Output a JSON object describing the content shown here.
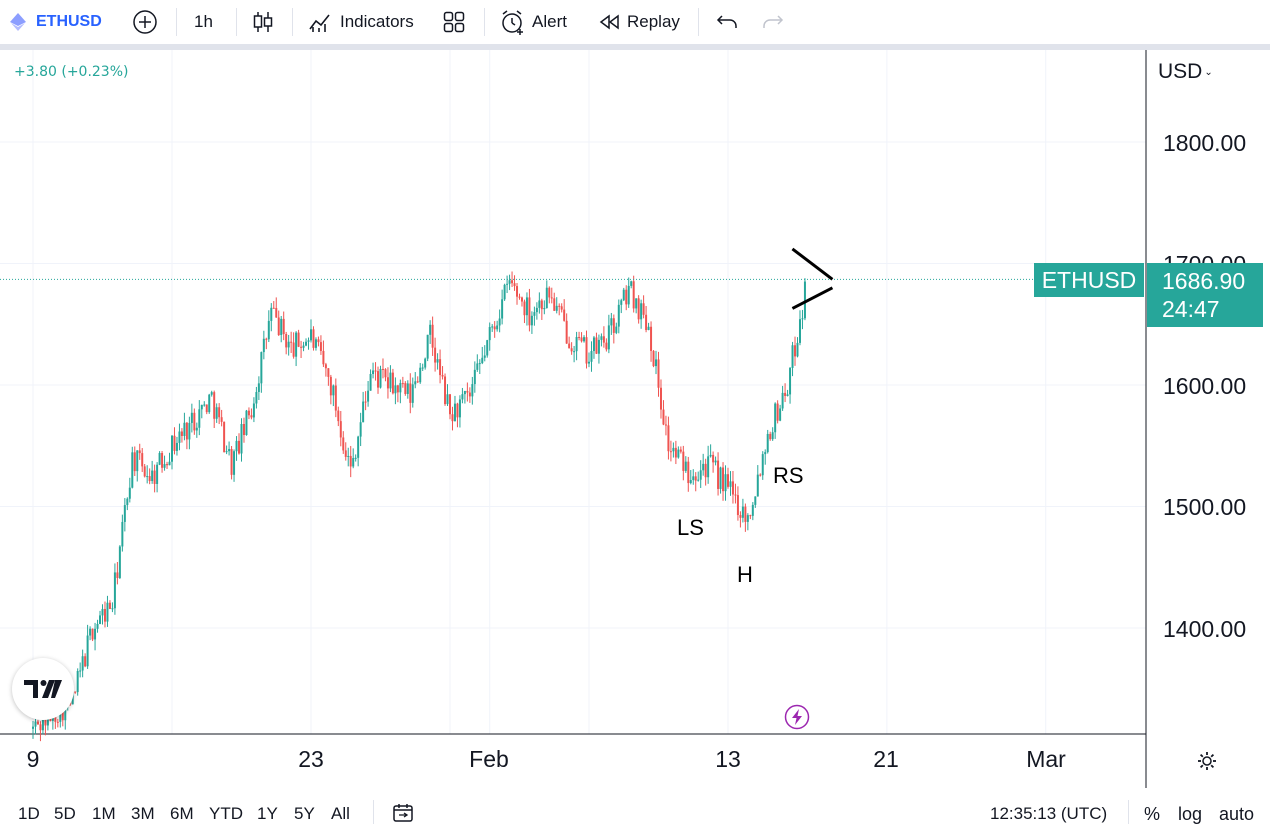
{
  "toolbar": {
    "symbol": "ETHUSD",
    "interval": "1h",
    "indicators_label": "Indicators",
    "alert_label": "Alert",
    "replay_label": "Replay"
  },
  "chart": {
    "change_text": "+3.80 (+0.23%)",
    "currency": "USD",
    "price_scale": [
      "1800.00",
      "1700.00",
      "1600.00",
      "1500.00",
      "1400.00"
    ],
    "time_scale": [
      "9",
      "23",
      "Feb",
      "13",
      "21",
      "Mar"
    ],
    "symbol_tag": "ETHUSD",
    "last_price": "1686.90",
    "countdown": "24:47",
    "annotations": {
      "left_shoulder": "LS",
      "head": "H",
      "right_shoulder": "RS"
    },
    "colors": {
      "up": "#26a69a",
      "down": "#ef5350",
      "accent": "#26a69a",
      "symbol_blue": "#2962ff"
    }
  },
  "chart_data": {
    "type": "candlestick",
    "series_name": "ETHUSD",
    "interval": "1h",
    "y_range": [
      1317,
      1810
    ],
    "x": [
      "9",
      "23",
      "Feb",
      "13",
      "21",
      "Mar"
    ],
    "path": [
      [
        "2023-01-09",
        1317
      ],
      [
        "2023-01-10",
        1330
      ],
      [
        "2023-01-11",
        1340
      ],
      [
        "2023-01-12",
        1400
      ],
      [
        "2023-01-13",
        1420
      ],
      [
        "2023-01-14",
        1540
      ],
      [
        "2023-01-15",
        1525
      ],
      [
        "2023-01-16",
        1550
      ],
      [
        "2023-01-17",
        1570
      ],
      [
        "2023-01-18",
        1590
      ],
      [
        "2023-01-19",
        1535
      ],
      [
        "2023-01-20",
        1580
      ],
      [
        "2023-01-21",
        1660
      ],
      [
        "2023-01-22",
        1630
      ],
      [
        "2023-01-23",
        1640
      ],
      [
        "2023-01-24",
        1600
      ],
      [
        "2023-01-25",
        1530
      ],
      [
        "2023-01-26",
        1610
      ],
      [
        "2023-01-27",
        1600
      ],
      [
        "2023-01-28",
        1590
      ],
      [
        "2023-01-29",
        1640
      ],
      [
        "2023-01-30",
        1575
      ],
      [
        "2023-01-31",
        1590
      ],
      [
        "2023-02-01",
        1640
      ],
      [
        "2023-02-02",
        1685
      ],
      [
        "2023-02-03",
        1660
      ],
      [
        "2023-02-04",
        1675
      ],
      [
        "2023-02-05",
        1640
      ],
      [
        "2023-02-06",
        1625
      ],
      [
        "2023-02-07",
        1640
      ],
      [
        "2023-02-08",
        1680
      ],
      [
        "2023-02-09",
        1650
      ],
      [
        "2023-02-10",
        1550
      ],
      [
        "2023-02-11",
        1530
      ],
      [
        "2023-02-12",
        1535
      ],
      [
        "2023-02-13",
        1515
      ],
      [
        "2023-02-14",
        1490
      ],
      [
        "2023-02-15",
        1560
      ],
      [
        "2023-02-16",
        1600
      ],
      [
        "2023-02-17",
        1687
      ]
    ],
    "last": 1686.9,
    "change": 3.8,
    "change_pct": 0.23
  },
  "bottom": {
    "ranges": [
      "1D",
      "5D",
      "1M",
      "3M",
      "6M",
      "YTD",
      "1Y",
      "5Y",
      "All"
    ],
    "clock": "12:35:13 (UTC)",
    "percent": "%",
    "log": "log",
    "auto": "auto"
  }
}
